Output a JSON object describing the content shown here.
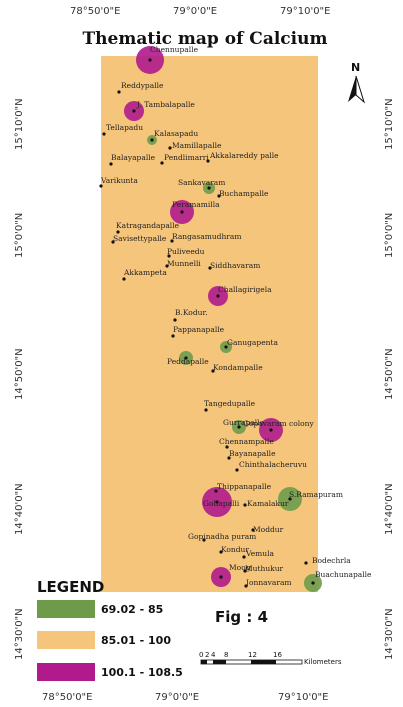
{
  "title": "Thematic map of Calcium",
  "north_label": "N",
  "fig_label": "Fig : 4",
  "top_longitudes": [
    "78°50'0\"E",
    "79°0'0\"E",
    "79°10'0\"E"
  ],
  "bottom_longitudes": [
    "78°50'0\"E",
    "79°0'0\"E",
    "79°10'0\"E"
  ],
  "left_latitudes": [
    "15°10'0\"N",
    "15°0'0\"N",
    "14°50'0\"N",
    "14°40'0\"N",
    "14°30'0\"N"
  ],
  "right_latitudes": [
    "15°10'0\"N",
    "15°0'0\"N",
    "14°50'0\"N",
    "14°40'0\"N",
    "14°30'0\"N"
  ],
  "legend": {
    "title": "LEGEND",
    "items": [
      {
        "label": "69.02 - 85",
        "color": "#6e9b4a"
      },
      {
        "label": "85.01 - 100",
        "color": "#f6c57c"
      },
      {
        "label": "100.1 - 108.5",
        "color": "#b01a8c"
      }
    ]
  },
  "scale_bar": {
    "ticks": [
      "0",
      "2",
      "4",
      "8",
      "12",
      "16"
    ],
    "unit": "Kilometers"
  },
  "colors": {
    "background_zone": "#f6c57c",
    "low_zone": "#6e9b4a",
    "high_zone": "#b01a8c"
  },
  "places": [
    {
      "name": "Chennupalle",
      "class": "high"
    },
    {
      "name": "Reddypalle",
      "class": "mid"
    },
    {
      "name": "J. Tambalapalle",
      "class": "high"
    },
    {
      "name": "Tellapadu",
      "class": "mid"
    },
    {
      "name": "Kalasapadu",
      "class": "low"
    },
    {
      "name": "Mamillapalle",
      "class": "mid"
    },
    {
      "name": "Balayapalle",
      "class": "mid"
    },
    {
      "name": "Pendlimarri",
      "class": "mid"
    },
    {
      "name": "Akkalareddy palle",
      "class": "mid"
    },
    {
      "name": "Varikunta",
      "class": "mid"
    },
    {
      "name": "Sankavaram",
      "class": "low"
    },
    {
      "name": "Buchampalle",
      "class": "mid"
    },
    {
      "name": "Peramamilla",
      "class": "high"
    },
    {
      "name": "Katragandapalle",
      "class": "mid"
    },
    {
      "name": "Savisettypalle",
      "class": "mid"
    },
    {
      "name": "Rangasamudhram",
      "class": "mid"
    },
    {
      "name": "Puliveedu",
      "class": "mid"
    },
    {
      "name": "Munnelli",
      "class": "mid"
    },
    {
      "name": "Siddhavaram",
      "class": "mid"
    },
    {
      "name": "Akkampeta",
      "class": "mid"
    },
    {
      "name": "Challagirigela",
      "class": "high"
    },
    {
      "name": "B.Kodur.",
      "class": "mid"
    },
    {
      "name": "Pappanapalle",
      "class": "mid"
    },
    {
      "name": "Ganugapenta",
      "class": "low"
    },
    {
      "name": "Peddapalle",
      "class": "low"
    },
    {
      "name": "Kondampalle",
      "class": "mid"
    },
    {
      "name": "Tangedupalle",
      "class": "mid"
    },
    {
      "name": "Gurrapalle",
      "class": "low"
    },
    {
      "name": "Gopavaram colony",
      "class": "high"
    },
    {
      "name": "Chennampalle",
      "class": "mid"
    },
    {
      "name": "Bayanapalle",
      "class": "mid"
    },
    {
      "name": "Chinthalacheruvu",
      "class": "mid"
    },
    {
      "name": "Thippanapalle",
      "class": "high"
    },
    {
      "name": "Gollapalli",
      "class": "high"
    },
    {
      "name": "Kamalakur",
      "class": "mid"
    },
    {
      "name": "S.Ramapuram",
      "class": "low"
    },
    {
      "name": "Moddur",
      "class": "mid"
    },
    {
      "name": "Gopinadha puram",
      "class": "mid"
    },
    {
      "name": "Kondur",
      "class": "mid"
    },
    {
      "name": "Vemula",
      "class": "mid"
    },
    {
      "name": "Bodechrla",
      "class": "mid"
    },
    {
      "name": "Moog",
      "class": "high"
    },
    {
      "name": "Muthukur",
      "class": "mid"
    },
    {
      "name": "Buachunapalle",
      "class": "low"
    },
    {
      "name": "Jonnavaram",
      "class": "mid"
    }
  ]
}
